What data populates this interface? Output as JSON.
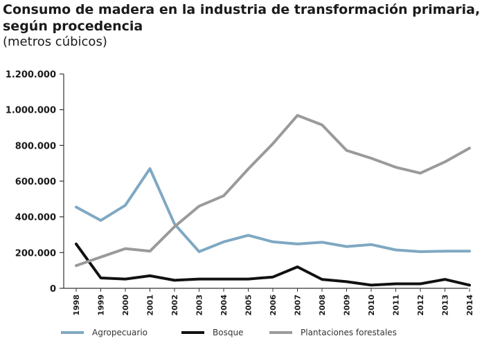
{
  "chart_data": {
    "type": "line",
    "title": "Consumo de madera en la industria de transformación primaria, según procedencia",
    "subtitle": "(metros cúbicos)",
    "xlabel": "",
    "ylabel": "",
    "categories": [
      "1998",
      "1999",
      "2000",
      "2001",
      "2002",
      "2003",
      "2004",
      "2005",
      "2006",
      "2007",
      "2008",
      "2009",
      "2010",
      "2011",
      "2012",
      "2013",
      "2014"
    ],
    "ylim": [
      0,
      1200000
    ],
    "yticks": [
      0,
      200000,
      400000,
      600000,
      800000,
      1000000,
      1200000
    ],
    "ytick_labels": [
      "0",
      "200.000",
      "400.000",
      "600.000",
      "800.000",
      "1.000.000",
      "1.200.000"
    ],
    "grid": false,
    "legend_position": "bottom",
    "series": [
      {
        "name": "Agropecuario",
        "color": "#7fa8c2",
        "values": [
          455000,
          380000,
          465000,
          670000,
          360000,
          205000,
          260000,
          297000,
          260000,
          248000,
          258000,
          234000,
          245000,
          215000,
          205000,
          208000,
          208000
        ]
      },
      {
        "name": "Bosque",
        "color": "#111111",
        "values": [
          248000,
          58000,
          52000,
          70000,
          45000,
          52000,
          52000,
          52000,
          63000,
          120000,
          50000,
          37000,
          18000,
          25000,
          25000,
          50000,
          18000
        ]
      },
      {
        "name": "Plantaciones forestales",
        "color": "#9a9a9a",
        "values": [
          127000,
          175000,
          222000,
          208000,
          345000,
          460000,
          518000,
          668000,
          810000,
          968000,
          915000,
          772000,
          728000,
          678000,
          645000,
          708000,
          785000
        ]
      }
    ]
  }
}
